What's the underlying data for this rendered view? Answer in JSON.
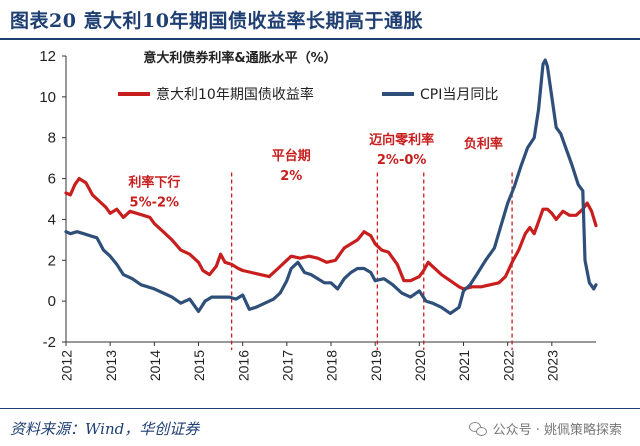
{
  "header": {
    "title": "图表20 意大利10年期国债收益率长期高于通胀"
  },
  "footer": {
    "source": "资料来源：Wind，华创证券",
    "watermark": "公众号 · 姚佩策略探索"
  },
  "colors": {
    "yield": "#c81e1e",
    "cpi": "#2e4f7a",
    "annotation": "#c81e1e",
    "title_blue": "#1f3f73"
  },
  "chart_data": {
    "type": "line",
    "title": "意大利债券利率&通胀水平（%）",
    "xlabel": "",
    "ylabel": "",
    "xlim": [
      2012.0,
      2024.0
    ],
    "ylim": [
      -2,
      12
    ],
    "yticks": [
      -2,
      0,
      2,
      4,
      6,
      8,
      10,
      12
    ],
    "xticks": [
      "2012",
      "2013",
      "2014",
      "2015",
      "2016",
      "2017",
      "2018",
      "2019",
      "2020",
      "2021",
      "2022",
      "2023"
    ],
    "legend": "top",
    "series": [
      {
        "name": "意大利10年期国债收益率",
        "color": "#c81e1e",
        "x": [
          2012.0,
          2012.1,
          2012.2,
          2012.3,
          2012.45,
          2012.6,
          2012.75,
          2012.9,
          2013.0,
          2013.15,
          2013.3,
          2013.45,
          2013.6,
          2013.75,
          2013.9,
          2014.0,
          2014.2,
          2014.4,
          2014.6,
          2014.8,
          2015.0,
          2015.1,
          2015.25,
          2015.4,
          2015.5,
          2015.6,
          2015.75,
          2015.9,
          2016.0,
          2016.2,
          2016.4,
          2016.6,
          2016.8,
          2016.95,
          2017.1,
          2017.3,
          2017.5,
          2017.7,
          2017.9,
          2018.1,
          2018.3,
          2018.45,
          2018.6,
          2018.75,
          2018.9,
          2019.0,
          2019.15,
          2019.3,
          2019.5,
          2019.65,
          2019.8,
          2020.0,
          2020.1,
          2020.2,
          2020.3,
          2020.5,
          2020.7,
          2020.9,
          2021.0,
          2021.2,
          2021.4,
          2021.6,
          2021.8,
          2021.95,
          2022.1,
          2022.25,
          2022.4,
          2022.5,
          2022.6,
          2022.7,
          2022.8,
          2022.9,
          2023.0,
          2023.1,
          2023.25,
          2023.4,
          2023.55,
          2023.7,
          2023.8,
          2023.9,
          2024.0
        ],
        "values": [
          5.3,
          5.2,
          5.7,
          6.0,
          5.8,
          5.2,
          4.9,
          4.6,
          4.3,
          4.5,
          4.1,
          4.4,
          4.3,
          4.2,
          4.1,
          3.8,
          3.4,
          3.0,
          2.5,
          2.3,
          1.9,
          1.5,
          1.3,
          1.7,
          2.3,
          1.9,
          1.8,
          1.6,
          1.5,
          1.4,
          1.3,
          1.2,
          1.6,
          1.9,
          2.2,
          2.1,
          2.2,
          2.1,
          1.9,
          2.0,
          2.6,
          2.8,
          3.0,
          3.4,
          3.2,
          2.8,
          2.5,
          2.4,
          1.8,
          1.0,
          1.0,
          1.2,
          1.5,
          1.9,
          1.7,
          1.3,
          1.0,
          0.7,
          0.6,
          0.7,
          0.7,
          0.8,
          0.9,
          1.2,
          1.9,
          2.5,
          3.3,
          3.6,
          3.3,
          3.9,
          4.5,
          4.5,
          4.3,
          4.0,
          4.4,
          4.2,
          4.2,
          4.5,
          4.8,
          4.4,
          3.7
        ]
      },
      {
        "name": "CPI当月同比",
        "color": "#2e4f7a",
        "x": [
          2012.0,
          2012.1,
          2012.25,
          2012.4,
          2012.55,
          2012.7,
          2012.85,
          2013.0,
          2013.15,
          2013.3,
          2013.5,
          2013.7,
          2013.85,
          2014.0,
          2014.2,
          2014.4,
          2014.6,
          2014.8,
          2015.0,
          2015.15,
          2015.3,
          2015.5,
          2015.7,
          2015.85,
          2016.0,
          2016.15,
          2016.3,
          2016.5,
          2016.7,
          2016.85,
          2017.0,
          2017.1,
          2017.25,
          2017.4,
          2017.55,
          2017.7,
          2017.85,
          2018.0,
          2018.15,
          2018.3,
          2018.45,
          2018.6,
          2018.75,
          2018.9,
          2019.0,
          2019.2,
          2019.4,
          2019.6,
          2019.8,
          2020.0,
          2020.15,
          2020.3,
          2020.5,
          2020.7,
          2020.9,
          2021.0,
          2021.15,
          2021.3,
          2021.5,
          2021.7,
          2021.85,
          2022.0,
          2022.15,
          2022.3,
          2022.45,
          2022.6,
          2022.7,
          2022.8,
          2022.85,
          2022.9,
          2023.0,
          2023.1,
          2023.2,
          2023.3,
          2023.45,
          2023.6,
          2023.7,
          2023.75,
          2023.85,
          2023.95,
          2024.0
        ],
        "values": [
          3.4,
          3.3,
          3.4,
          3.3,
          3.2,
          3.1,
          2.5,
          2.2,
          1.8,
          1.3,
          1.1,
          0.8,
          0.7,
          0.6,
          0.4,
          0.2,
          -0.1,
          0.1,
          -0.5,
          0.0,
          0.2,
          0.2,
          0.2,
          0.1,
          0.3,
          -0.4,
          -0.3,
          -0.1,
          0.1,
          0.4,
          1.0,
          1.6,
          1.9,
          1.4,
          1.3,
          1.1,
          0.9,
          0.9,
          0.6,
          1.1,
          1.4,
          1.6,
          1.6,
          1.4,
          1.0,
          1.1,
          0.8,
          0.4,
          0.2,
          0.5,
          0.0,
          -0.1,
          -0.3,
          -0.6,
          -0.3,
          0.5,
          0.8,
          1.3,
          2.0,
          2.6,
          3.7,
          4.8,
          5.6,
          6.6,
          7.5,
          8.0,
          9.4,
          11.6,
          11.8,
          11.5,
          10.0,
          8.5,
          8.2,
          7.6,
          6.7,
          5.7,
          5.4,
          2.0,
          0.9,
          0.6,
          0.8
        ]
      }
    ],
    "annotations": [
      {
        "label_lines": [
          "利率下行",
          "5%-2%"
        ],
        "x": 2014.0,
        "y": 5.6
      },
      {
        "label_lines": [
          "平台期",
          "2%"
        ],
        "x": 2017.1,
        "y": 6.9
      },
      {
        "label_lines": [
          "迈向零利率",
          "2%-0%"
        ],
        "x": 2019.6,
        "y": 7.7
      },
      {
        "label_lines": [
          "负利率"
        ],
        "x": 2021.45,
        "y": 7.5
      }
    ],
    "vlines": [
      2015.75,
      2019.05,
      2020.1,
      2022.1
    ]
  }
}
